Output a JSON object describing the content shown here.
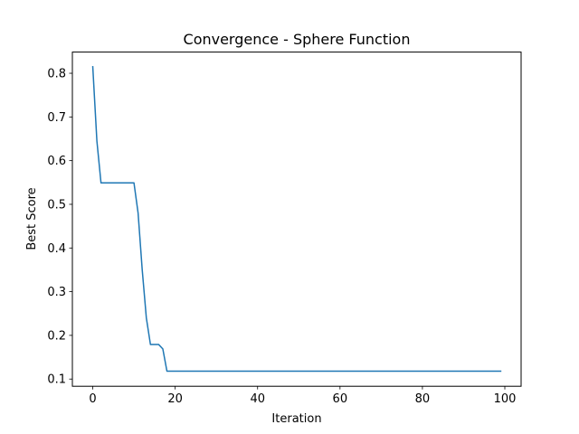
{
  "chart_data": {
    "type": "line",
    "title": "Convergence - Sphere Function",
    "xlabel": "Iteration",
    "ylabel": "Best Score",
    "xlim": [
      -4.95,
      103.95
    ],
    "ylim": [
      0.0835,
      0.8485
    ],
    "xticks": [
      0,
      20,
      40,
      60,
      80,
      100
    ],
    "yticks": [
      0.1,
      0.2,
      0.3,
      0.4,
      0.5,
      0.6,
      0.7,
      0.8
    ],
    "xtick_labels": [
      "0",
      "20",
      "40",
      "60",
      "80",
      "100"
    ],
    "ytick_labels": [
      "0.1",
      "0.2",
      "0.3",
      "0.4",
      "0.5",
      "0.6",
      "0.7",
      "0.8"
    ],
    "grid": false,
    "legend": false,
    "series": [
      {
        "color": "#1f77b4",
        "x": [
          0,
          1,
          2,
          3,
          4,
          5,
          6,
          7,
          8,
          9,
          10,
          11,
          12,
          13,
          14,
          15,
          16,
          17,
          18,
          19,
          20,
          30,
          40,
          50,
          60,
          70,
          80,
          90,
          99
        ],
        "y": [
          0.815,
          0.645,
          0.549,
          0.549,
          0.549,
          0.549,
          0.549,
          0.549,
          0.549,
          0.549,
          0.549,
          0.48,
          0.35,
          0.24,
          0.179,
          0.179,
          0.179,
          0.169,
          0.118,
          0.118,
          0.118,
          0.118,
          0.118,
          0.118,
          0.118,
          0.118,
          0.118,
          0.118,
          0.118
        ]
      }
    ]
  }
}
